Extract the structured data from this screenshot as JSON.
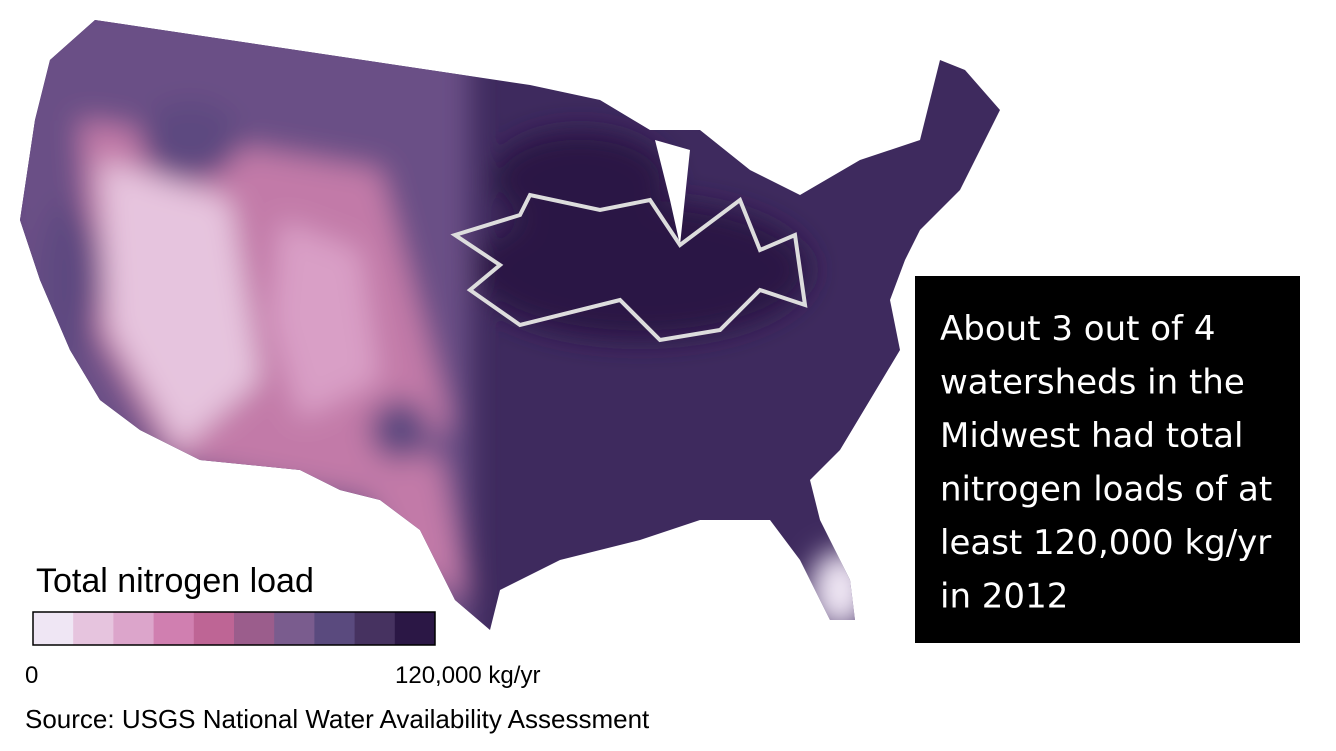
{
  "legend": {
    "title": "Total nitrogen load",
    "colors": [
      "#efe6f4",
      "#e6c4de",
      "#dca5cb",
      "#d07fb0",
      "#be6595",
      "#9b5d8c",
      "#7a5c8e",
      "#5a4a7e",
      "#463260",
      "#2b1745"
    ],
    "min_label": "0",
    "max_label": "120,000 kg/yr"
  },
  "callout": {
    "lines": [
      "About 3 out of 4",
      "watersheds in the",
      "Midwest had total",
      "nitrogen loads of at",
      "least 120,000 kg/yr",
      "in 2012"
    ]
  },
  "source": "Source: USGS National Water Availability Assessment"
}
